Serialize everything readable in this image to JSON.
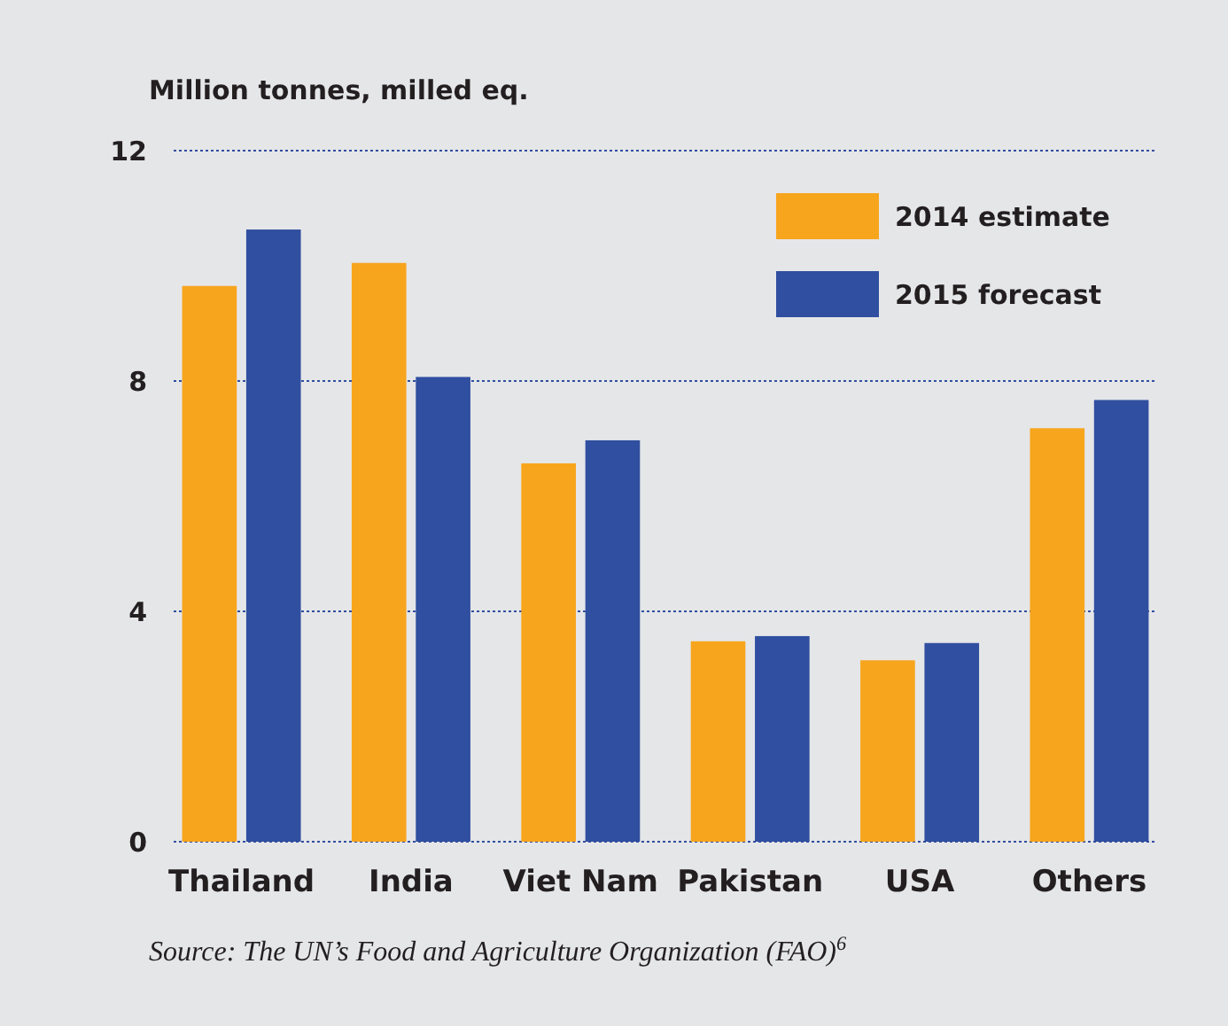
{
  "chart_data": {
    "type": "bar",
    "ylabel": "Million tonnes, milled eq.",
    "categories": [
      "Thailand",
      "India",
      "Viet Nam",
      "Pakistan",
      "USA",
      "Others"
    ],
    "series": [
      {
        "name": "2014 estimate",
        "color": "#f7a51d",
        "values": [
          9.65,
          10.05,
          6.57,
          3.48,
          3.15,
          7.18
        ]
      },
      {
        "name": "2015 forecast",
        "color": "#304fa0",
        "values": [
          10.63,
          8.07,
          6.97,
          3.57,
          3.45,
          7.67
        ]
      }
    ],
    "ylim": [
      0,
      12
    ],
    "yticks": [
      0,
      4,
      8,
      12
    ],
    "grid": "y",
    "legend": "top right",
    "annotations": [
      "Source: The UN’s Food and Agriculture Organization (FAO)$^{6}$"
    ]
  }
}
